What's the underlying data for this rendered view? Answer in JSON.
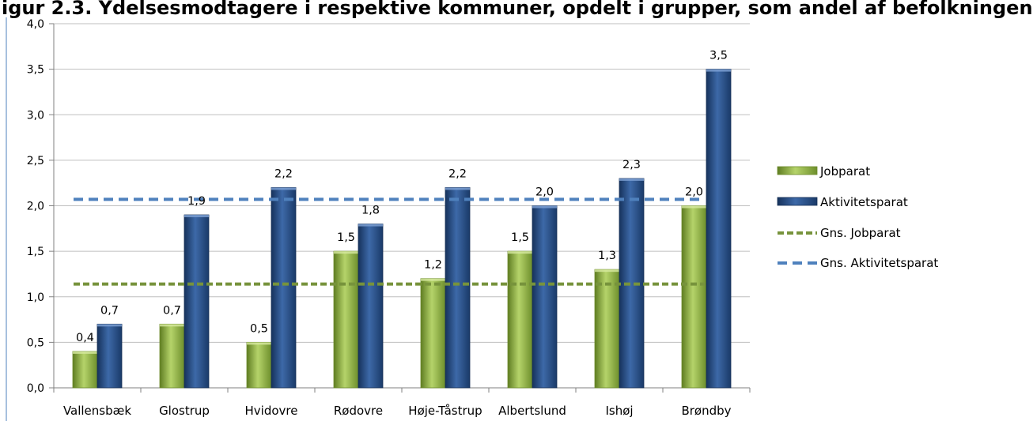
{
  "chart_data": {
    "type": "bar",
    "title": "igur 2.3. Ydelsesmodtagere i respektive kommuner, opdelt i grupper, som andel af befolkningen",
    "categories": [
      "Vallensbæk",
      "Glostrup",
      "Hvidovre",
      "Rødovre",
      "Høje-Tåstrup",
      "Albertslund",
      "Ishøj",
      "Brøndby"
    ],
    "series": [
      {
        "name": "Jobparat",
        "values": [
          0.4,
          0.7,
          0.5,
          1.5,
          1.2,
          1.5,
          1.3,
          2.0
        ],
        "labels": [
          "0,4",
          "0,7",
          "0,5",
          "1,5",
          "1,2",
          "1,5",
          "1,3",
          "2,0"
        ]
      },
      {
        "name": "Aktivitetsparat",
        "values": [
          0.7,
          1.9,
          2.2,
          1.8,
          2.2,
          2.0,
          2.3,
          3.5
        ],
        "labels": [
          "0,7",
          "1,9",
          "2,2",
          "1,8",
          "2,2",
          "2,0",
          "2,3",
          "3,5"
        ]
      }
    ],
    "averages": [
      {
        "name": "Gns. Jobparat",
        "value": 1.14
      },
      {
        "name": "Gns. Aktivitetsparat",
        "value": 2.07
      }
    ],
    "ylim": [
      0,
      4
    ],
    "yticks": [
      0,
      0.5,
      1,
      1.5,
      2,
      2.5,
      3,
      3.5,
      4
    ],
    "ytick_labels": [
      "0,0",
      "0,5",
      "1,0",
      "1,5",
      "2,0",
      "2,5",
      "3,0",
      "3,5",
      "4,0"
    ],
    "grid": true,
    "legend_position": "right",
    "colors": {
      "jobparat": "#8cae3c",
      "aktivitetsparat": "#23497f",
      "avg_jobparat": "#77933c",
      "avg_aktivitetsparat": "#4f81bd",
      "grid": "#bfbfbf"
    }
  }
}
